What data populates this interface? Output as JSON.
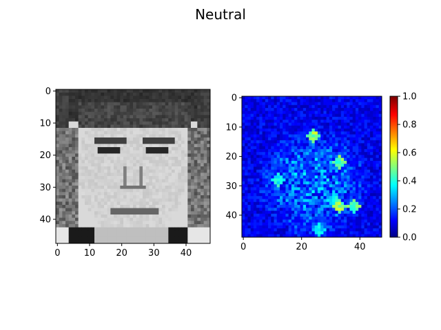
{
  "figure": {
    "title": "Neutral"
  },
  "chart_data": [
    {
      "type": "heatmap",
      "panel": "face-image",
      "title": "",
      "colormap": "gray",
      "image_size": [
        48,
        48
      ],
      "xlim": [
        0,
        47
      ],
      "ylim": [
        47,
        0
      ],
      "xticks": [
        0,
        10,
        20,
        30,
        40
      ],
      "yticks": [
        0,
        10,
        20,
        30,
        40
      ],
      "xtick_labels": [
        "0",
        "10",
        "20",
        "30",
        "40"
      ],
      "ytick_labels": [
        "0",
        "10",
        "20",
        "30",
        "40"
      ],
      "colorbar": false
    },
    {
      "type": "heatmap",
      "panel": "saliency-map",
      "title": "",
      "colormap": "jet",
      "image_size": [
        48,
        48
      ],
      "xlim": [
        0,
        47
      ],
      "ylim": [
        47,
        0
      ],
      "xticks": [
        0,
        20,
        40
      ],
      "yticks": [
        0,
        10,
        20,
        30,
        40
      ],
      "xtick_labels": [
        "0",
        "20",
        "40"
      ],
      "ytick_labels": [
        "0",
        "10",
        "20",
        "30",
        "40"
      ],
      "colorbar": true,
      "colorbar_range": [
        0.0,
        1.0
      ],
      "colorbar_ticks": [
        0.0,
        0.2,
        0.4,
        0.6,
        0.8,
        1.0
      ],
      "colorbar_tick_labels": [
        "0.0",
        "0.2",
        "0.4",
        "0.6",
        "0.8",
        "1.0"
      ]
    }
  ]
}
